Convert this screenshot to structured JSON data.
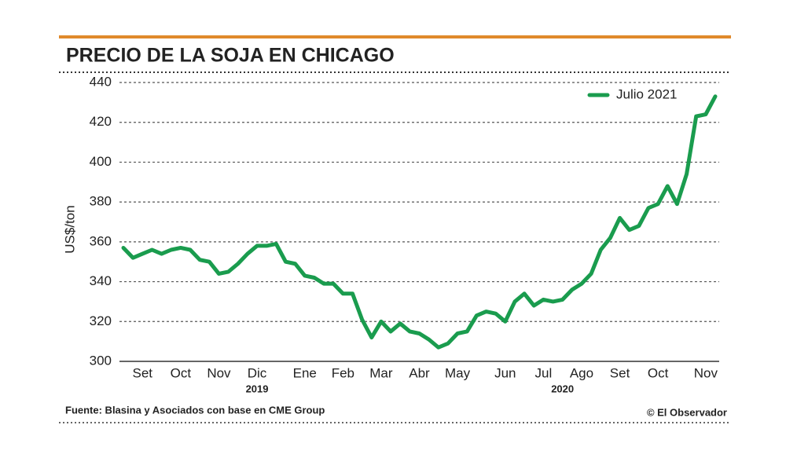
{
  "chart_data": {
    "type": "line",
    "title": "PRECIO DE LA SOJA EN CHICAGO",
    "y_label": "US$/ton",
    "categories": [
      null,
      null,
      "Set",
      null,
      null,
      null,
      "Oct",
      null,
      null,
      null,
      "Nov",
      null,
      null,
      null,
      "Dic",
      null,
      null,
      null,
      null,
      "Ene",
      null,
      null,
      null,
      "Feb",
      null,
      null,
      null,
      "Mar",
      null,
      null,
      null,
      "Abr",
      null,
      null,
      null,
      "May",
      null,
      null,
      null,
      null,
      "Jun",
      null,
      null,
      null,
      "Jul",
      null,
      null,
      null,
      "Ago",
      null,
      null,
      null,
      "Set",
      null,
      null,
      null,
      "Oct",
      null,
      null,
      null,
      null,
      "Nov",
      null
    ],
    "year_labels": [
      "2019",
      "2020"
    ],
    "series": [
      {
        "name": "Julio 2021",
        "color": "#1a9c4e",
        "values": [
          357,
          352,
          354,
          356,
          354,
          356,
          357,
          356,
          351,
          350,
          344,
          345,
          349,
          354,
          358,
          358,
          359,
          350,
          349,
          343,
          342,
          339,
          339,
          334,
          334,
          321,
          312,
          320,
          315,
          319,
          315,
          314,
          311,
          307,
          309,
          314,
          315,
          323,
          325,
          324,
          320,
          330,
          334,
          328,
          331,
          330,
          331,
          336,
          339,
          344,
          356,
          362,
          372,
          366,
          368,
          377,
          379,
          388,
          379,
          394,
          423,
          424,
          433
        ]
      }
    ],
    "ylim": [
      300,
      440
    ],
    "yticks": [
      300,
      320,
      340,
      360,
      380,
      400,
      420,
      440
    ],
    "grid": true,
    "legend": "upper right",
    "source": "Fuente: Blasina y Asociados con base en CME Group",
    "credit": "© El Observador"
  }
}
